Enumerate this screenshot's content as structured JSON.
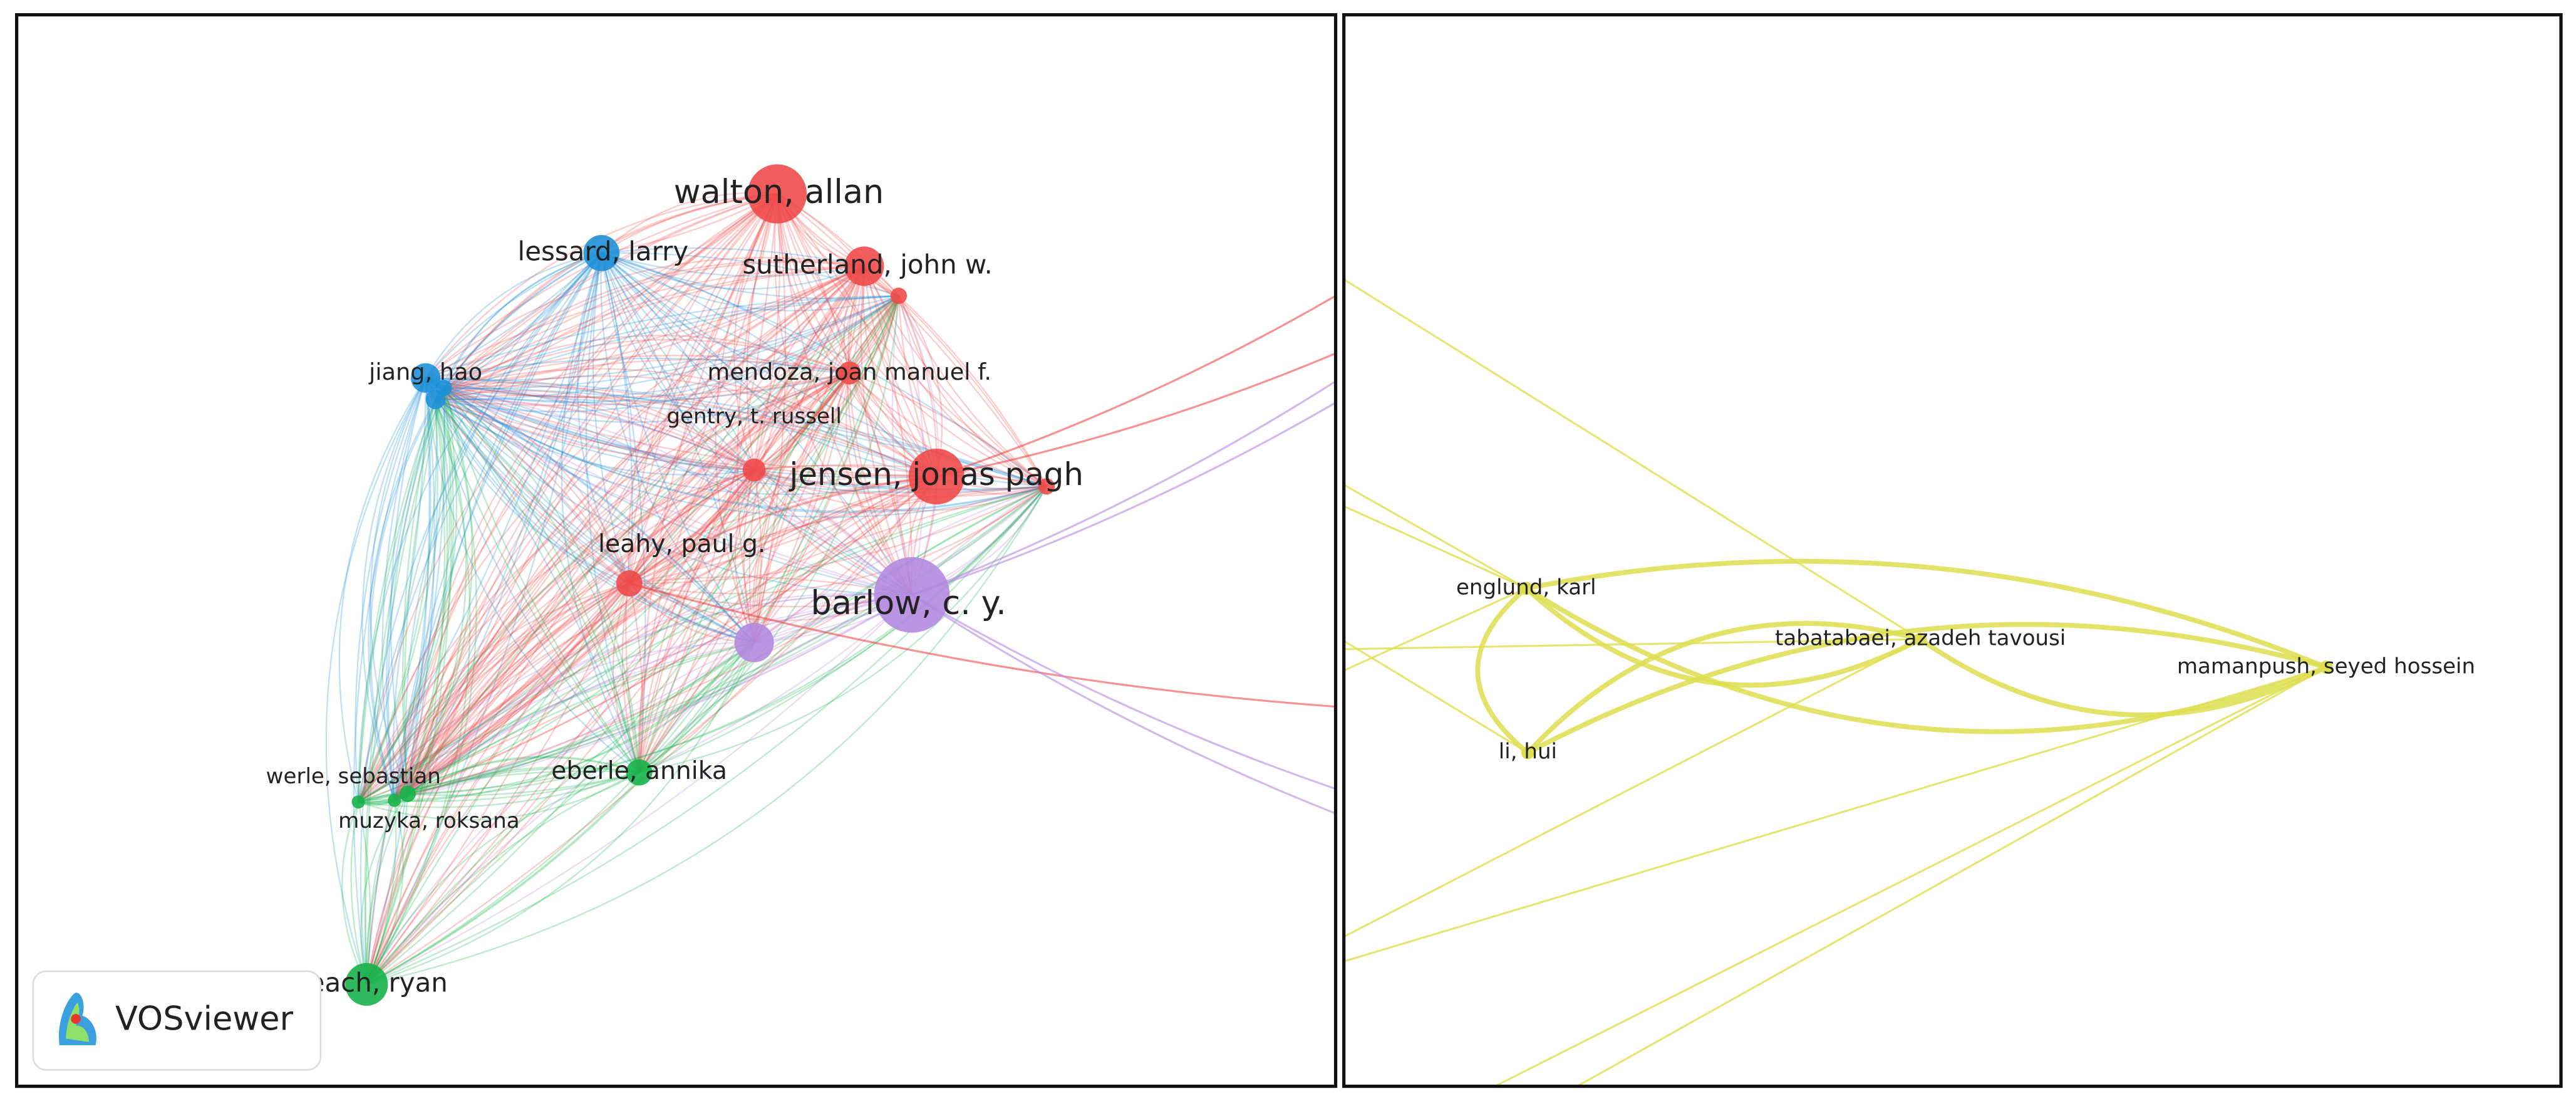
{
  "panels": [
    {
      "nodes": [
        {
          "label": "walton, allan"
        },
        {
          "label": "lessard, larry"
        },
        {
          "label": "sutherland, john w."
        },
        {
          "label": "jiang, hao"
        },
        {
          "label": "mendoza, joan manuel f."
        },
        {
          "label": "gentry, t. russell"
        },
        {
          "label": "jensen, jonas pagh"
        },
        {
          "label": "leahy, paul g."
        },
        {
          "label": "barlow, c. y."
        },
        {
          "label": "werle, sebastian"
        },
        {
          "label": "eberle, annika"
        },
        {
          "label": "muzyka, roksana"
        },
        {
          "label": "beach, ryan"
        }
      ]
    },
    {
      "nodes": [
        {
          "label": "englund, karl"
        },
        {
          "label": "tabatabaei, azadeh tavousi"
        },
        {
          "label": "mamanpush, seyed hossein"
        },
        {
          "label": "li, hui"
        }
      ]
    }
  ],
  "logo": {
    "text": "VOSviewer"
  }
}
